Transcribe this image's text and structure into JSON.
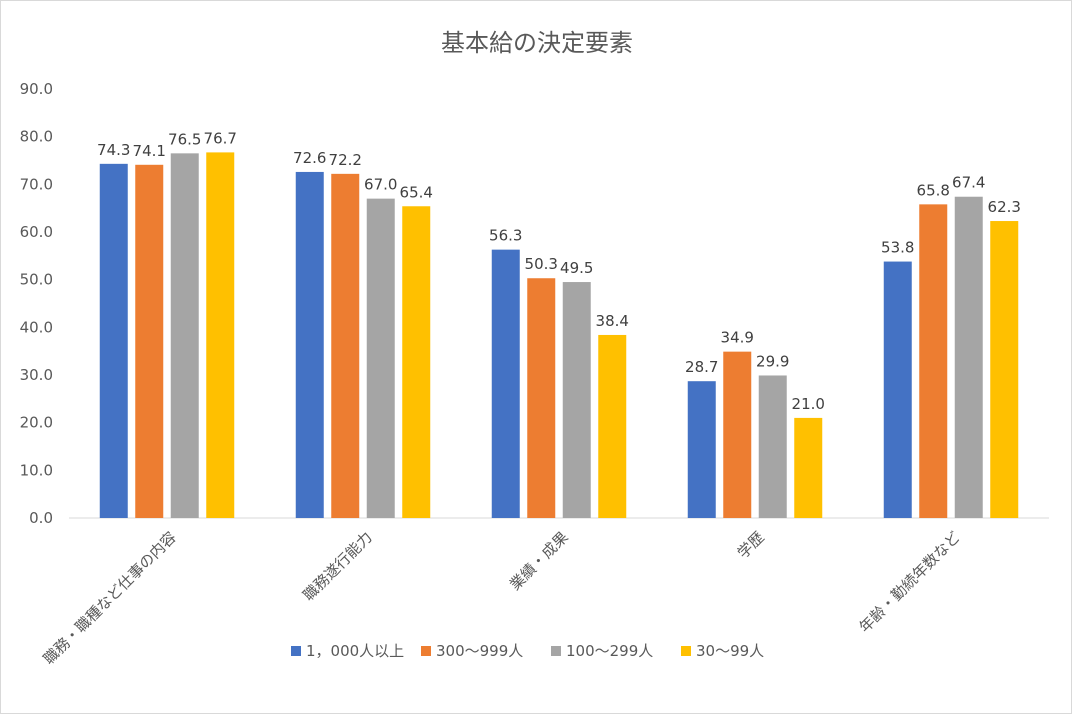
{
  "chart_data": {
    "type": "bar",
    "title": "基本給の決定要素",
    "categories": [
      "職務・職種など仕事の内容",
      "職務遂行能力",
      "業績・成果",
      "学歴",
      "年齢・勤続年数など"
    ],
    "series": [
      {
        "name": "1，000人以上",
        "color": "#4472c4",
        "values": [
          74.3,
          72.6,
          56.3,
          28.7,
          53.8
        ]
      },
      {
        "name": "300～999人",
        "color": "#ed7d31",
        "values": [
          74.1,
          72.2,
          50.3,
          34.9,
          65.8
        ]
      },
      {
        "name": "100～299人",
        "color": "#a5a5a5",
        "values": [
          76.5,
          67.0,
          49.5,
          29.9,
          67.4
        ]
      },
      {
        "name": "30～99人",
        "color": "#ffc000",
        "values": [
          76.7,
          65.4,
          38.4,
          21.0,
          62.3
        ]
      }
    ],
    "yticks": [
      "0.0",
      "10.0",
      "20.0",
      "30.0",
      "40.0",
      "50.0",
      "60.0",
      "70.0",
      "80.0",
      "90.0"
    ],
    "ylim": [
      0,
      90
    ],
    "xlabel": "",
    "ylabel": "",
    "grid": false,
    "legend_position": "bottom",
    "data_labels": true
  }
}
